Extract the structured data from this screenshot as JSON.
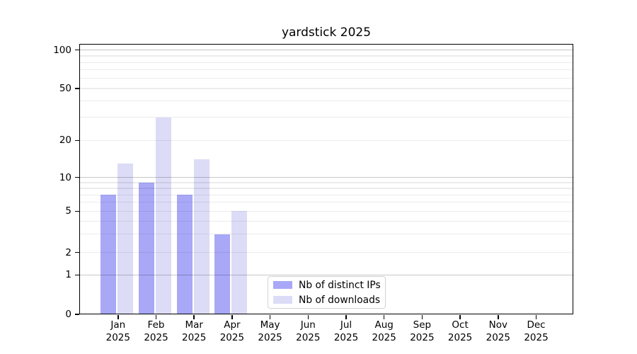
{
  "window": {
    "background": "#ffffff"
  },
  "chart_data": {
    "type": "bar",
    "title": "yardstick 2025",
    "months": [
      "Jan",
      "Feb",
      "Mar",
      "Apr",
      "May",
      "Jun",
      "Jul",
      "Aug",
      "Sep",
      "Oct",
      "Nov",
      "Dec"
    ],
    "year": "2025",
    "series": [
      {
        "name": "Nb of distinct IPs",
        "color": "#a8a8f7",
        "values": [
          7,
          9,
          7,
          3,
          0,
          0,
          0,
          0,
          0,
          0,
          0,
          0
        ]
      },
      {
        "name": "Nb of downloads",
        "color": "#dcdcf7",
        "values": [
          13,
          30,
          14,
          5,
          0,
          0,
          0,
          0,
          0,
          0,
          0,
          0
        ]
      }
    ],
    "xlabel": "",
    "ylabel": "",
    "yaxis": {
      "scale": "symlog",
      "ticks": [
        0,
        1,
        2,
        5,
        10,
        20,
        50,
        100
      ],
      "range": [
        0,
        112
      ],
      "major_gridlines": [
        1,
        10,
        100
      ],
      "minor_gridlines": [
        2,
        3,
        4,
        5,
        6,
        7,
        8,
        9,
        20,
        30,
        40,
        50,
        60,
        70,
        80,
        90
      ],
      "grid_major_color": "rgba(0,0,0,0.22)",
      "grid_minor_color": "rgba(0,0,0,0.075)"
    },
    "legend": {
      "position": "lower center",
      "border_color": "#d2d2d2",
      "background": "#ffffff"
    },
    "axis_color": "#000000",
    "text_color": "#000000",
    "grid": true
  }
}
